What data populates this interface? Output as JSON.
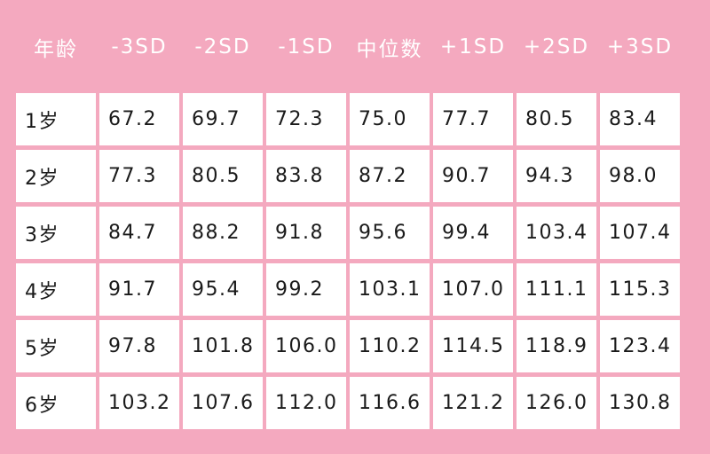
{
  "table": {
    "headers": [
      "年龄",
      "-3SD",
      "-2SD",
      "-1SD",
      "中位数",
      "+1SD",
      "+2SD",
      "+3SD"
    ],
    "rows": [
      [
        "1岁",
        "67.2",
        "69.7",
        "72.3",
        "75.0",
        "77.7",
        "80.5",
        "83.4"
      ],
      [
        "2岁",
        "77.3",
        "80.5",
        "83.8",
        "87.2",
        "90.7",
        "94.3",
        "98.0"
      ],
      [
        "3岁",
        "84.7",
        "88.2",
        "91.8",
        "95.6",
        "99.4",
        "103.4",
        "107.4"
      ],
      [
        "4岁",
        "91.7",
        "95.4",
        "99.2",
        "103.1",
        "107.0",
        "111.1",
        "115.3"
      ],
      [
        "5岁",
        "97.8",
        "101.8",
        "106.0",
        "110.2",
        "114.5",
        "118.9",
        "123.4"
      ],
      [
        "6岁",
        "103.2",
        "107.6",
        "112.0",
        "116.6",
        "121.2",
        "126.0",
        "130.8"
      ]
    ]
  },
  "colors": {
    "background": "#f4a9bf",
    "cell": "#ffffff",
    "header_text": "#ffffff",
    "cell_text": "#1a1a1a"
  }
}
